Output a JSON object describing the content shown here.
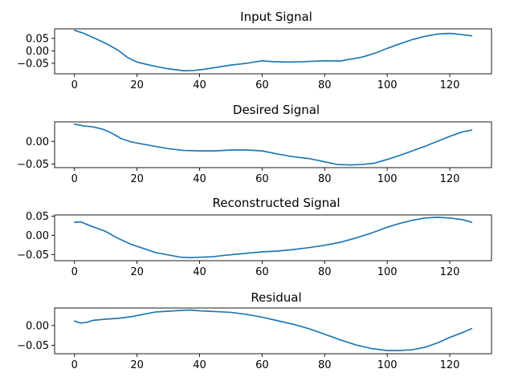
{
  "colors": {
    "series": "#1f77b4",
    "background": "#ffffff",
    "axes": "#000000"
  },
  "chart_data": [
    {
      "type": "line",
      "title": "Input Signal",
      "xlabel": "",
      "ylabel": "",
      "xlim": [
        -6.35,
        133.35
      ],
      "ylim": [
        -0.092,
        0.088
      ],
      "xticks": [
        0,
        20,
        40,
        60,
        80,
        100,
        120
      ],
      "xtick_labels": [
        "0",
        "20",
        "40",
        "60",
        "80",
        "100",
        "120"
      ],
      "yticks": [
        0.05,
        0.0,
        -0.05
      ],
      "ytick_labels": [
        "0.05",
        "0.00",
        "−0.05"
      ],
      "grid": false,
      "series": [
        {
          "name": "",
          "x": [
            0,
            3,
            6,
            10,
            14,
            17,
            20,
            25,
            30,
            35,
            38,
            42,
            46,
            50,
            55,
            60,
            63,
            68,
            72,
            76,
            80,
            85,
            88,
            92,
            96,
            100,
            104,
            108,
            112,
            116,
            120,
            124,
            127
          ],
          "y": [
            0.082,
            0.07,
            0.053,
            0.03,
            0.002,
            -0.027,
            -0.045,
            -0.06,
            -0.072,
            -0.08,
            -0.079,
            -0.073,
            -0.065,
            -0.057,
            -0.05,
            -0.04,
            -0.043,
            -0.045,
            -0.044,
            -0.042,
            -0.04,
            -0.041,
            -0.034,
            -0.025,
            -0.01,
            0.01,
            0.028,
            0.045,
            0.058,
            0.067,
            0.07,
            0.065,
            0.06
          ]
        }
      ]
    },
    {
      "type": "line",
      "title": "Desired Signal",
      "xlabel": "",
      "ylabel": "",
      "xlim": [
        -6.35,
        133.35
      ],
      "ylim": [
        -0.058,
        0.043
      ],
      "xticks": [
        0,
        20,
        40,
        60,
        80,
        100,
        120
      ],
      "xtick_labels": [
        "0",
        "20",
        "40",
        "60",
        "80",
        "100",
        "120"
      ],
      "yticks": [
        0.0,
        -0.05
      ],
      "ytick_labels": [
        "0.00",
        "−0.05"
      ],
      "grid": false,
      "series": [
        {
          "name": "",
          "x": [
            0,
            3,
            6,
            9,
            12,
            15,
            18,
            21,
            25,
            30,
            35,
            40,
            45,
            50,
            55,
            60,
            65,
            70,
            75,
            80,
            84,
            88,
            92,
            96,
            100,
            104,
            108,
            112,
            116,
            120,
            124,
            127
          ],
          "y": [
            0.038,
            0.034,
            0.032,
            0.027,
            0.018,
            0.006,
            -0.001,
            -0.005,
            -0.01,
            -0.016,
            -0.02,
            -0.021,
            -0.021,
            -0.019,
            -0.019,
            -0.021,
            -0.028,
            -0.034,
            -0.038,
            -0.045,
            -0.051,
            -0.052,
            -0.051,
            -0.048,
            -0.04,
            -0.031,
            -0.021,
            -0.011,
            0.0,
            0.011,
            0.021,
            0.025
          ]
        }
      ]
    },
    {
      "type": "line",
      "title": "Reconstructed Signal",
      "xlabel": "",
      "ylabel": "",
      "xlim": [
        -6.35,
        133.35
      ],
      "ylim": [
        -0.066,
        0.053
      ],
      "xticks": [
        0,
        20,
        40,
        60,
        80,
        100,
        120
      ],
      "xtick_labels": [
        "0",
        "20",
        "40",
        "60",
        "80",
        "100",
        "120"
      ],
      "yticks": [
        0.05,
        0.0,
        -0.05
      ],
      "ytick_labels": [
        "0.05",
        "0.00",
        "−0.05"
      ],
      "grid": false,
      "series": [
        {
          "name": "",
          "x": [
            0,
            2,
            5,
            10,
            14,
            18,
            22,
            26,
            30,
            34,
            37,
            40,
            44,
            48,
            52,
            56,
            60,
            65,
            70,
            75,
            80,
            85,
            90,
            95,
            100,
            104,
            108,
            112,
            116,
            120,
            124,
            127
          ],
          "y": [
            0.034,
            0.035,
            0.025,
            0.01,
            -0.008,
            -0.023,
            -0.034,
            -0.045,
            -0.051,
            -0.057,
            -0.058,
            -0.057,
            -0.056,
            -0.052,
            -0.049,
            -0.046,
            -0.043,
            -0.041,
            -0.037,
            -0.032,
            -0.026,
            -0.018,
            -0.007,
            0.006,
            0.021,
            0.031,
            0.039,
            0.045,
            0.047,
            0.045,
            0.041,
            0.034
          ]
        }
      ]
    },
    {
      "type": "line",
      "title": "Residual",
      "xlabel": "",
      "ylabel": "",
      "xlim": [
        -6.35,
        133.35
      ],
      "ylim": [
        -0.071,
        0.044
      ],
      "xticks": [
        0,
        20,
        40,
        60,
        80,
        100,
        120
      ],
      "xtick_labels": [
        "0",
        "20",
        "40",
        "60",
        "80",
        "100",
        "120"
      ],
      "yticks": [
        0.0,
        -0.05
      ],
      "ytick_labels": [
        "0.00",
        "−0.05"
      ],
      "grid": false,
      "series": [
        {
          "name": "",
          "x": [
            0,
            2,
            4,
            6,
            10,
            14,
            18,
            22,
            26,
            30,
            34,
            37,
            40,
            45,
            50,
            55,
            60,
            65,
            70,
            75,
            80,
            85,
            90,
            95,
            100,
            104,
            108,
            112,
            116,
            120,
            124,
            127
          ],
          "y": [
            0.011,
            0.006,
            0.008,
            0.013,
            0.016,
            0.018,
            0.022,
            0.028,
            0.034,
            0.036,
            0.038,
            0.039,
            0.037,
            0.035,
            0.033,
            0.028,
            0.021,
            0.012,
            0.003,
            -0.008,
            -0.022,
            -0.036,
            -0.049,
            -0.058,
            -0.063,
            -0.063,
            -0.061,
            -0.055,
            -0.044,
            -0.03,
            -0.018,
            -0.008
          ]
        }
      ]
    }
  ]
}
